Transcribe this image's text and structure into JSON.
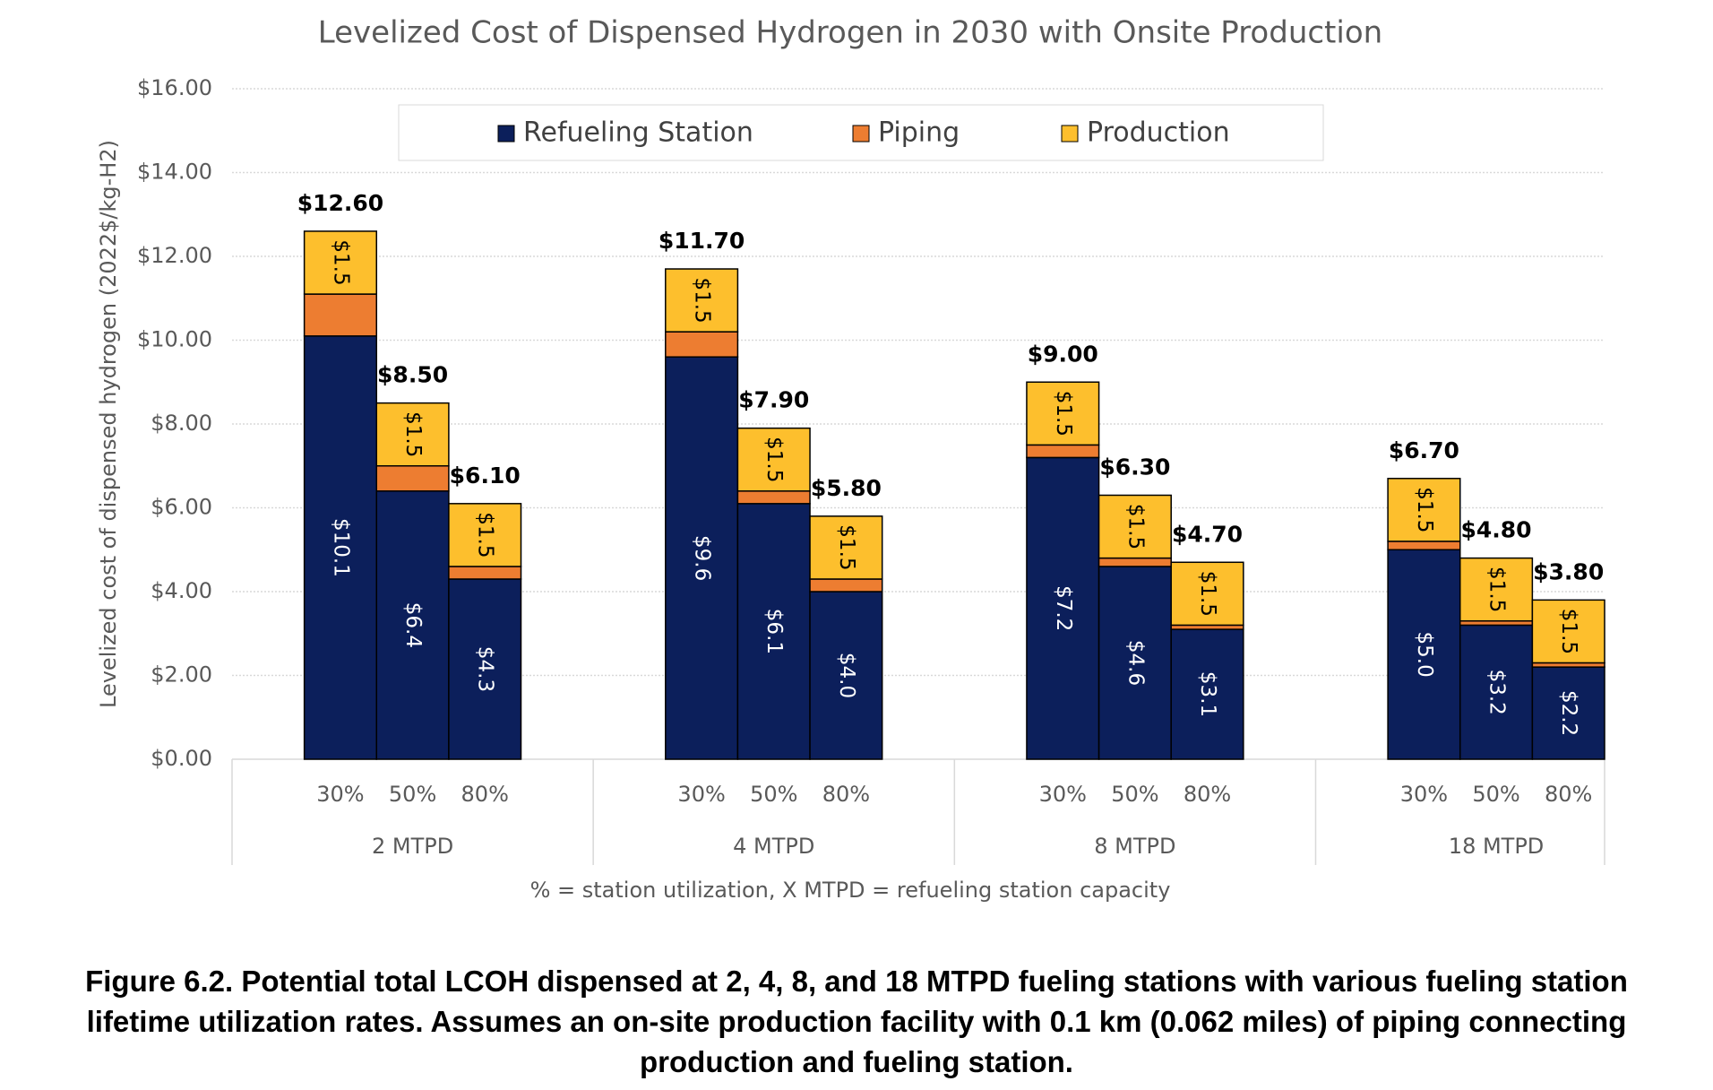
{
  "chart_data": {
    "type": "stacked_bar",
    "title": "Levelized Cost of Dispensed Hydrogen in 2030 with Onsite Production",
    "y_label": "Levelized cost of dispensed hydrogen (2022$/kg-H2)",
    "x_label": "% = station utilization, X MTPD = refueling station capacity",
    "categories": [
      "30%",
      "50%",
      "80%",
      "30%",
      "50%",
      "80%",
      "30%",
      "50%",
      "80%",
      "30%",
      "50%",
      "80%"
    ],
    "groups": [
      "2 MTPD",
      "4 MTPD",
      "8 MTPD",
      "18 MTPD"
    ],
    "series": [
      {
        "name": "Refueling Station",
        "color": "#0c1f5b",
        "label_color": "#ffffff",
        "values": [
          10.1,
          6.4,
          4.3,
          9.6,
          6.1,
          4.0,
          7.2,
          4.6,
          3.1,
          5.0,
          3.2,
          2.2
        ],
        "value_labels": [
          "$10.1",
          "$6.4",
          "$4.3",
          "$9.6",
          "$6.1",
          "$4.0",
          "$7.2",
          "$4.6",
          "$3.1",
          "$5.0",
          "$3.2",
          "$2.2"
        ]
      },
      {
        "name": "Piping",
        "color": "#ed7d31",
        "values": [
          1.0,
          0.6,
          0.3,
          0.6,
          0.3,
          0.3,
          0.3,
          0.2,
          0.1,
          0.2,
          0.1,
          0.1
        ]
      },
      {
        "name": "Production",
        "color": "#fdbf2d",
        "label_color": "#000000",
        "values": [
          1.5,
          1.5,
          1.5,
          1.5,
          1.5,
          1.5,
          1.5,
          1.5,
          1.5,
          1.5,
          1.5,
          1.5
        ],
        "value_labels": [
          "$1.5",
          "$1.5",
          "$1.5",
          "$1.5",
          "$1.5",
          "$1.5",
          "$1.5",
          "$1.5",
          "$1.5",
          "$1.5",
          "$1.5",
          "$1.5"
        ]
      }
    ],
    "totals": [
      12.6,
      8.5,
      6.1,
      11.7,
      7.9,
      5.8,
      9.0,
      6.3,
      4.7,
      6.7,
      4.8,
      3.8
    ],
    "total_labels": [
      "$12.60",
      "$8.50",
      "$6.10",
      "$11.70",
      "$7.90",
      "$5.80",
      "$9.00",
      "$6.30",
      "$4.70",
      "$6.70",
      "$4.80",
      "$3.80"
    ],
    "ylim": [
      0,
      16
    ],
    "yticks": [
      {
        "value": 0,
        "label": "$0.00"
      },
      {
        "value": 2,
        "label": "$2.00"
      },
      {
        "value": 4,
        "label": "$4.00"
      },
      {
        "value": 6,
        "label": "$6.00"
      },
      {
        "value": 8,
        "label": "$8.00"
      },
      {
        "value": 10,
        "label": "$10.00"
      },
      {
        "value": 12,
        "label": "$12.00"
      },
      {
        "value": 14,
        "label": "$14.00"
      },
      {
        "value": 16,
        "label": "$16.00"
      }
    ],
    "grid": true,
    "legend": "top"
  },
  "caption": "Figure 6.2. Potential total LCOH dispensed at 2, 4, 8, and 18 MTPD fueling stations with various fueling station lifetime utilization rates. Assumes an on-site production facility with 0.1 km (0.062 miles) of piping connecting production and fueling station."
}
